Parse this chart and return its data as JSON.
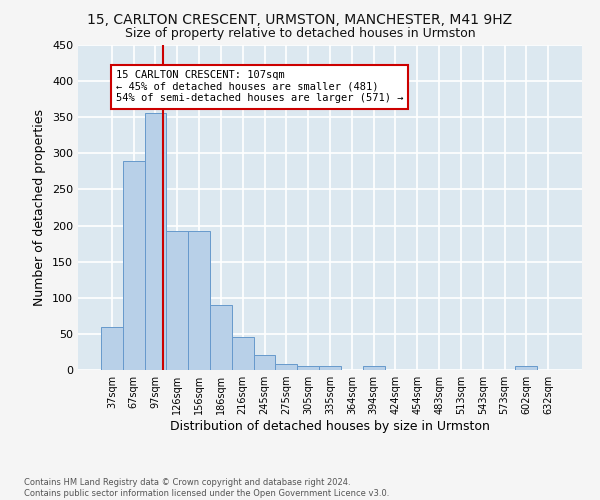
{
  "title": "15, CARLTON CRESCENT, URMSTON, MANCHESTER, M41 9HZ",
  "subtitle": "Size of property relative to detached houses in Urmston",
  "xlabel": "Distribution of detached houses by size in Urmston",
  "ylabel": "Number of detached properties",
  "bar_labels": [
    "37sqm",
    "67sqm",
    "97sqm",
    "126sqm",
    "156sqm",
    "186sqm",
    "216sqm",
    "245sqm",
    "275sqm",
    "305sqm",
    "335sqm",
    "364sqm",
    "394sqm",
    "424sqm",
    "454sqm",
    "483sqm",
    "513sqm",
    "543sqm",
    "573sqm",
    "602sqm",
    "632sqm"
  ],
  "bar_values": [
    59,
    289,
    356,
    192,
    192,
    90,
    46,
    21,
    8,
    5,
    5,
    0,
    5,
    0,
    0,
    0,
    0,
    0,
    0,
    5,
    0
  ],
  "bar_color": "#b8d0e8",
  "bar_edge_color": "#6699cc",
  "background_color": "#dce8f0",
  "fig_background_color": "#f5f5f5",
  "grid_color": "#ffffff",
  "property_line_x": 2.35,
  "property_line_color": "#cc0000",
  "annotation_text": "15 CARLTON CRESCENT: 107sqm\n← 45% of detached houses are smaller (481)\n54% of semi-detached houses are larger (571) →",
  "annotation_box_color": "#ffffff",
  "annotation_box_edge": "#cc0000",
  "footnote": "Contains HM Land Registry data © Crown copyright and database right 2024.\nContains public sector information licensed under the Open Government Licence v3.0.",
  "ylim": [
    0,
    450
  ],
  "title_fontsize": 10,
  "subtitle_fontsize": 9,
  "ylabel_fontsize": 9,
  "xlabel_fontsize": 9,
  "annotation_fontsize": 7.5
}
